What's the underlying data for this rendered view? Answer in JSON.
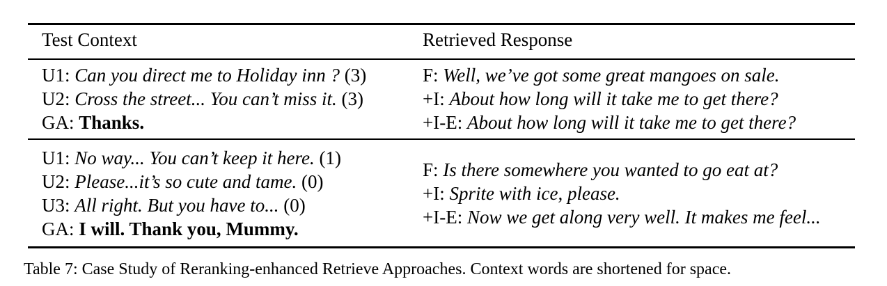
{
  "table": {
    "headers": {
      "context": "Test Context",
      "response": "Retrieved Response"
    },
    "groups": [
      {
        "context": [
          {
            "speaker": "U1: ",
            "text": "Can you direct me to Holiday inn ?",
            "score": " (3)"
          },
          {
            "speaker": "U2: ",
            "text": "Cross the street... You can’t miss it.",
            "score": " (3)"
          },
          {
            "speaker": "GA: ",
            "text": "Thanks.",
            "score": ""
          }
        ],
        "responses": [
          {
            "label": "F: ",
            "text": "Well, we’ve got some great mangoes on sale."
          },
          {
            "label": "+I: ",
            "text": "About how long will it take me to get there?"
          },
          {
            "label": "+I-E: ",
            "text": "About how long will it take me to get there?"
          }
        ]
      },
      {
        "context": [
          {
            "speaker": "U1: ",
            "text": "No way... You can’t keep it here.",
            "score": " (1)"
          },
          {
            "speaker": "U2: ",
            "text": "Please...it’s so cute and tame.",
            "score": " (0)"
          },
          {
            "speaker": "U3: ",
            "text": "All right. But you have to...",
            "score": " (0)"
          },
          {
            "speaker": "GA: ",
            "text": "I will. Thank you, Mummy.",
            "score": ""
          }
        ],
        "responses": [
          {
            "label": "F: ",
            "text": "Is there somewhere you wanted to go eat at?"
          },
          {
            "label": "+I: ",
            "text": "Sprite with ice, please."
          },
          {
            "label": "+I-E: ",
            "text": "Now we get along very well. It makes me feel..."
          }
        ]
      }
    ]
  },
  "caption": "Table 7: Case Study of Reranking-enhanced Retrieve Approaches. Context words are shortened for space."
}
